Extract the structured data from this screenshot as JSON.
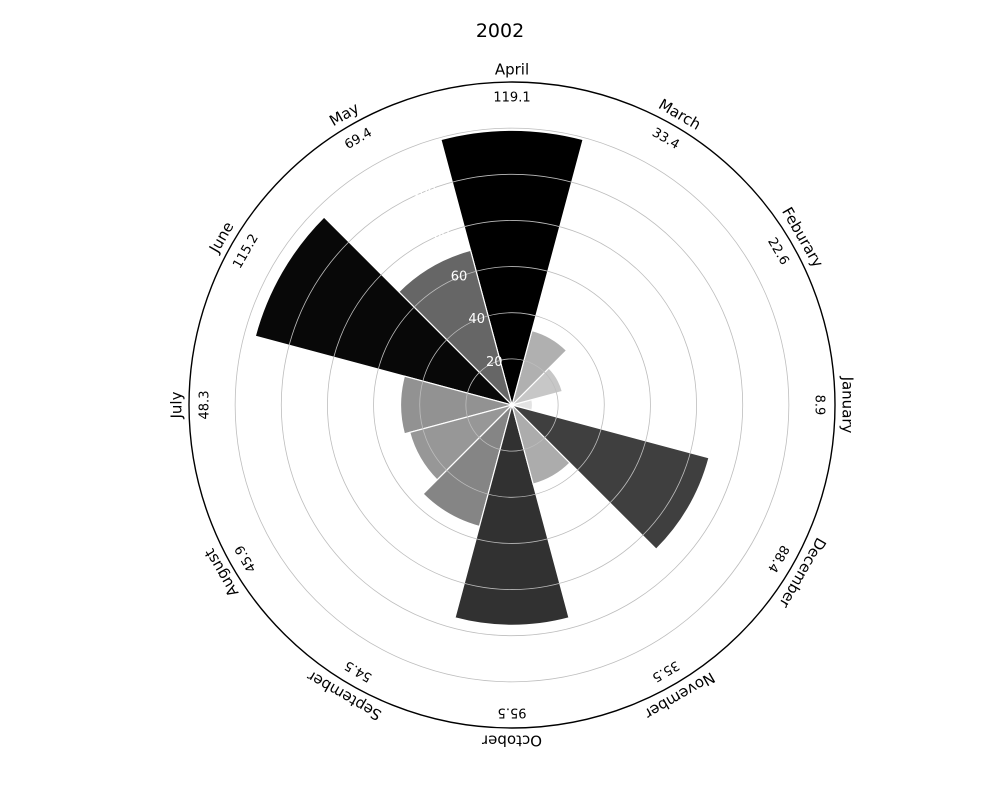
{
  "chart_data": {
    "type": "polar-bar",
    "title": "2002",
    "categories": [
      "January",
      "Feburary",
      "March",
      "April",
      "May",
      "June",
      "July",
      "August",
      "September",
      "October",
      "November",
      "December"
    ],
    "values": [
      8.9,
      22.6,
      33.4,
      119.1,
      69.4,
      115.2,
      48.3,
      45.9,
      54.5,
      95.5,
      35.5,
      88.4
    ],
    "value_labels": [
      "8.9",
      "22.6",
      "33.4",
      "119.1",
      "69.4",
      "115.2",
      "48.3",
      "45.9",
      "54.5",
      "95.5",
      "35.5",
      "88.4"
    ],
    "radial_ticks": [
      20,
      40,
      60,
      80,
      100
    ],
    "radial_tick_labels": [
      "20",
      "40",
      "60",
      "80",
      "100"
    ],
    "rlim": [
      0,
      140
    ],
    "colormap": "greys",
    "grid": true,
    "legend": "none"
  }
}
